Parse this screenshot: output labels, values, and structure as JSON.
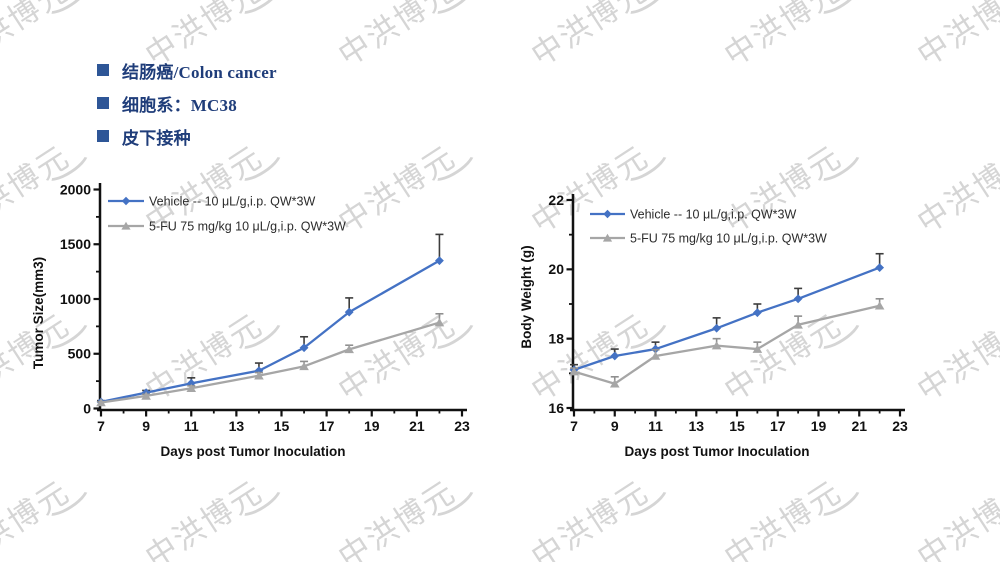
{
  "watermark": {
    "text": "中洪博元",
    "color": "#d5d5d5"
  },
  "colors": {
    "vehicle_blue": "#4472C4",
    "fu_gray": "#A6A6A6",
    "bullet_text": "#1F3D7A",
    "bullet_square": "#2E5697",
    "axis": "#111111"
  },
  "bullets": [
    {
      "label": "结肠癌/Colon cancer"
    },
    {
      "label": "细胞系：MC38"
    },
    {
      "label": "皮下接种"
    }
  ],
  "chart_data": [
    {
      "type": "line",
      "title": "",
      "xlabel": "Days post Tumor Inoculation",
      "ylabel": "Tumor Size(mm3)",
      "xlim": [
        7,
        23
      ],
      "ylim": [
        0,
        2000
      ],
      "xticks": [
        7,
        9,
        11,
        13,
        15,
        17,
        19,
        21,
        23
      ],
      "yticks": [
        0,
        500,
        1000,
        1500,
        2000
      ],
      "grid": false,
      "legend_position": "top-left",
      "x": [
        7,
        9,
        11,
        14,
        16,
        18,
        22
      ],
      "series": [
        {
          "name": "Vehicle -- 10 μL/g,i.p. QW*3W",
          "marker": "diamond",
          "color": "#4472C4",
          "error_color": "#3d3d3d",
          "values": [
            60,
            145,
            230,
            345,
            555,
            880,
            1350
          ],
          "errors_plus": [
            12,
            20,
            50,
            70,
            100,
            130,
            240
          ]
        },
        {
          "name": "5-FU 75 mg/kg 10 μL/g,i.p. QW*3W",
          "marker": "triangle",
          "color": "#A6A6A6",
          "error_color": "#8f8f8f",
          "values": [
            55,
            115,
            185,
            300,
            385,
            540,
            785
          ],
          "errors_plus": [
            8,
            15,
            22,
            28,
            45,
            38,
            80
          ]
        }
      ]
    },
    {
      "type": "line",
      "title": "",
      "xlabel": "Days post Tumor Inoculation",
      "ylabel": "Body Weight (g)",
      "xlim": [
        7,
        23
      ],
      "ylim": [
        16,
        22
      ],
      "xticks": [
        7,
        9,
        11,
        13,
        15,
        17,
        19,
        21,
        23
      ],
      "yticks": [
        16,
        18,
        20,
        22
      ],
      "grid": false,
      "legend_position": "top-left",
      "x": [
        7,
        9,
        11,
        14,
        16,
        18,
        22
      ],
      "series": [
        {
          "name": "Vehicle -- 10 μL/g,i.p. QW*3W",
          "marker": "diamond",
          "color": "#4472C4",
          "error_color": "#3d3d3d",
          "values": [
            17.1,
            17.5,
            17.7,
            18.3,
            18.75,
            19.15,
            20.05
          ],
          "errors_plus": [
            0.15,
            0.2,
            0.2,
            0.3,
            0.25,
            0.3,
            0.4
          ]
        },
        {
          "name": "5-FU 75 mg/kg 10 μL/g,i.p. QW*3W",
          "marker": "triangle",
          "color": "#A6A6A6",
          "error_color": "#8f8f8f",
          "values": [
            17.05,
            16.7,
            17.5,
            17.8,
            17.7,
            18.4,
            18.95
          ],
          "errors_plus": [
            0.1,
            0.2,
            0.18,
            0.2,
            0.2,
            0.25,
            0.2
          ]
        }
      ]
    }
  ]
}
